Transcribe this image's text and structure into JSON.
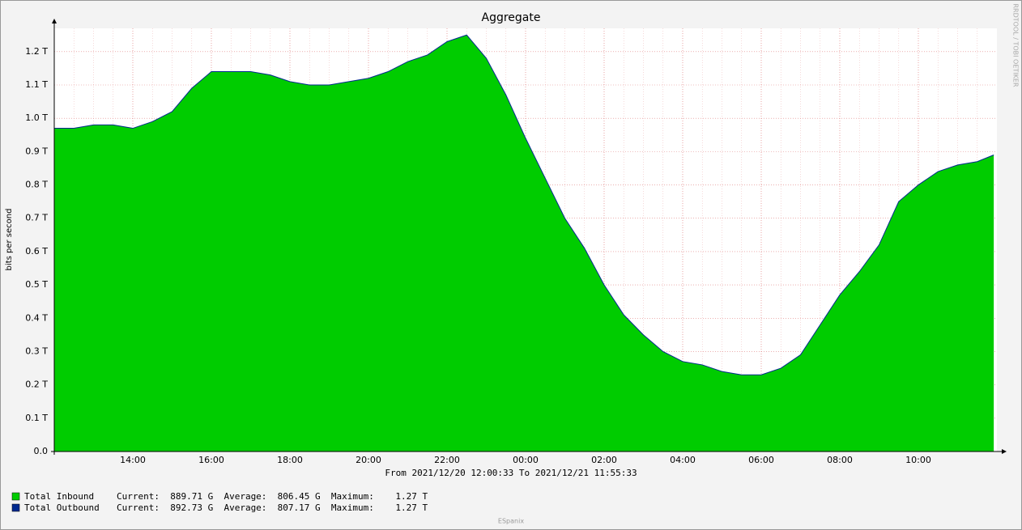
{
  "chart_data": {
    "type": "area",
    "title": "Aggregate",
    "y_label": "bits per second",
    "x_caption": "From 2021/12/20 12:00:33 To 2021/12/21 11:55:33",
    "watermark": "RRDTOOL / TOBI OETIKER",
    "footer": "ESpanix",
    "x": [
      12,
      12.5,
      13,
      13.5,
      14,
      14.5,
      15,
      15.5,
      16,
      16.5,
      17,
      17.5,
      18,
      18.5,
      19,
      19.5,
      20,
      20.5,
      21,
      21.5,
      22,
      22.5,
      23,
      23.5,
      24,
      24.5,
      25,
      25.5,
      26,
      26.5,
      27,
      27.5,
      28,
      28.5,
      29,
      29.5,
      30,
      30.5,
      31,
      31.5,
      32,
      32.5,
      33,
      33.5,
      34,
      34.5,
      35,
      35.5,
      35.92
    ],
    "series": [
      {
        "name": "Total Inbound",
        "color": "#00cc00",
        "legend_text": "Current:  889.71 G  Average:  806.45 G  Maximum:    1.27 T",
        "values": [
          0.97,
          0.97,
          0.98,
          0.98,
          0.97,
          0.99,
          1.02,
          1.09,
          1.14,
          1.14,
          1.14,
          1.13,
          1.11,
          1.1,
          1.1,
          1.11,
          1.12,
          1.14,
          1.17,
          1.19,
          1.23,
          1.25,
          1.18,
          1.07,
          0.94,
          0.82,
          0.7,
          0.61,
          0.5,
          0.41,
          0.35,
          0.3,
          0.27,
          0.26,
          0.24,
          0.23,
          0.23,
          0.25,
          0.29,
          0.38,
          0.47,
          0.54,
          0.62,
          0.75,
          0.8,
          0.84,
          0.86,
          0.87,
          0.89
        ]
      },
      {
        "name": "Total Outbound",
        "color": "#002a8f",
        "legend_text": "Current:  892.73 G  Average:  807.17 G  Maximum:    1.27 T",
        "values": [
          0.97,
          0.97,
          0.98,
          0.98,
          0.97,
          0.99,
          1.02,
          1.09,
          1.14,
          1.14,
          1.14,
          1.13,
          1.11,
          1.1,
          1.1,
          1.11,
          1.12,
          1.14,
          1.17,
          1.19,
          1.23,
          1.25,
          1.18,
          1.07,
          0.94,
          0.82,
          0.7,
          0.61,
          0.5,
          0.41,
          0.35,
          0.3,
          0.27,
          0.26,
          0.24,
          0.23,
          0.23,
          0.25,
          0.29,
          0.38,
          0.47,
          0.54,
          0.62,
          0.75,
          0.8,
          0.84,
          0.86,
          0.87,
          0.89
        ]
      }
    ],
    "xlim": [
      12,
      36
    ],
    "xticks": [
      {
        "value": 14,
        "label": "14:00"
      },
      {
        "value": 16,
        "label": "16:00"
      },
      {
        "value": 18,
        "label": "18:00"
      },
      {
        "value": 20,
        "label": "20:00"
      },
      {
        "value": 22,
        "label": "22:00"
      },
      {
        "value": 24,
        "label": "00:00"
      },
      {
        "value": 26,
        "label": "02:00"
      },
      {
        "value": 28,
        "label": "04:00"
      },
      {
        "value": 30,
        "label": "06:00"
      },
      {
        "value": 32,
        "label": "08:00"
      },
      {
        "value": 34,
        "label": "10:00"
      }
    ],
    "ylim": [
      0,
      1.27
    ],
    "yticks": [
      {
        "value": 0,
        "label": "0.0"
      },
      {
        "value": 0.1,
        "label": "0.1 T"
      },
      {
        "value": 0.2,
        "label": "0.2 T"
      },
      {
        "value": 0.3,
        "label": "0.3 T"
      },
      {
        "value": 0.4,
        "label": "0.4 T"
      },
      {
        "value": 0.5,
        "label": "0.5 T"
      },
      {
        "value": 0.6,
        "label": "0.6 T"
      },
      {
        "value": 0.7,
        "label": "0.7 T"
      },
      {
        "value": 0.8,
        "label": "0.8 T"
      },
      {
        "value": 0.9,
        "label": "0.9 T"
      },
      {
        "value": 1.0,
        "label": "1.0 T"
      },
      {
        "value": 1.1,
        "label": "1.1 T"
      },
      {
        "value": 1.2,
        "label": "1.2 T"
      }
    ],
    "grid": true
  }
}
